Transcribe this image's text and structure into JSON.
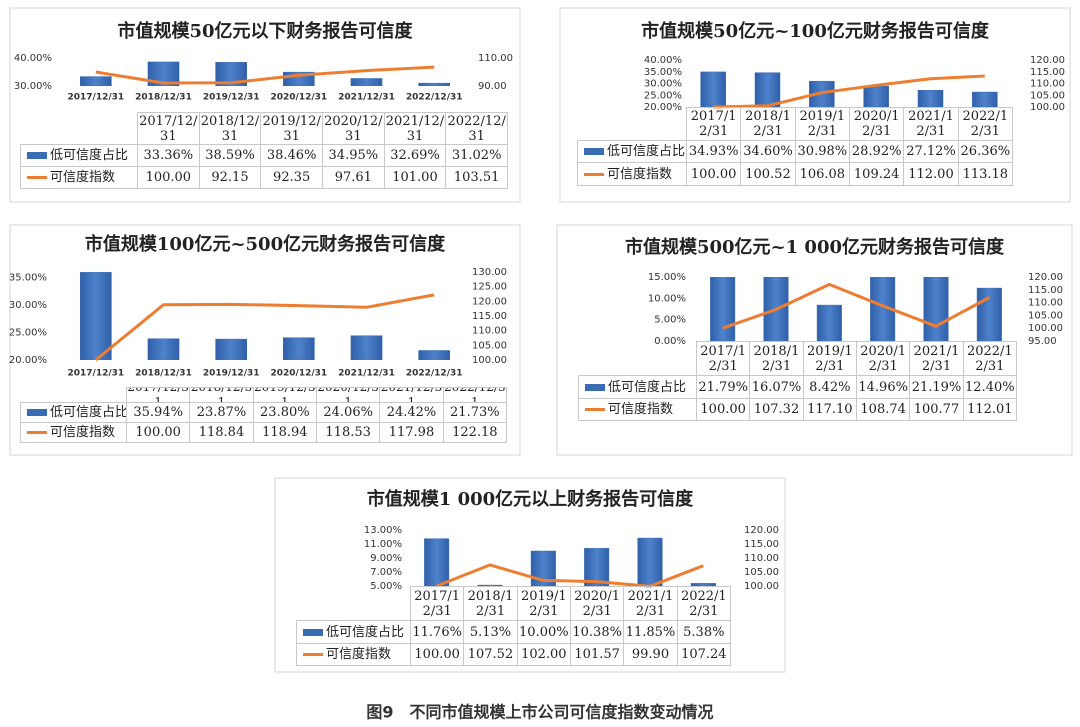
{
  "caption": "图9　不同市值规模上市公司可信度指数变动情况",
  "chart_data": [
    {
      "type": "combo",
      "title": "市值规模50亿元以下财务报告可信度",
      "categories": [
        "2017/12/31",
        "2018/12/31",
        "2019/12/31",
        "2020/12/31",
        "2021/12/31",
        "2022/12/31"
      ],
      "series": [
        {
          "name": "低可信度占比",
          "color": "#3a6cb4",
          "values": [
            33.36,
            38.59,
            38.46,
            34.95,
            32.69,
            31.02
          ],
          "value_labels": [
            "33.36%",
            "38.59%",
            "38.46%",
            "34.95%",
            "32.69%",
            "31.02%"
          ]
        },
        {
          "name": "可信度指数",
          "color": "#ed7d31",
          "axis": "y2",
          "values": [
            100,
            92.15,
            92.35,
            97.61,
            101,
            103.51
          ],
          "value_labels": [
            "100.00",
            "92.15",
            "92.35",
            "97.61",
            "101.00",
            "103.51"
          ]
        }
      ],
      "ylim": [
        30,
        40
      ],
      "yticks": [
        {
          "value": 30,
          "label": "30.00%"
        },
        {
          "value": 40,
          "label": "40.00%"
        }
      ],
      "y2lim": [
        90,
        110
      ],
      "y2ticks": [
        {
          "value": 90,
          "label": "90.00"
        },
        {
          "value": 110,
          "label": "110.00"
        }
      ]
    },
    {
      "type": "combo",
      "title": "市值规模50亿元~100亿元财务报告可信度",
      "categories": [
        "2017/12/31",
        "2018/12/31",
        "2019/12/31",
        "2020/12/31",
        "2021/12/31",
        "2022/12/31"
      ],
      "series": [
        {
          "name": "低可信度占比",
          "color": "#3a6cb4",
          "values": [
            34.93,
            34.6,
            30.98,
            28.92,
            27.12,
            26.36
          ],
          "value_labels": [
            "34.93%",
            "34.60%",
            "30.98%",
            "28.92%",
            "27.12%",
            "26.36%"
          ]
        },
        {
          "name": "可信度指数",
          "color": "#ed7d31",
          "axis": "y2",
          "values": [
            100,
            100.52,
            106.08,
            109.24,
            112,
            113.18
          ],
          "value_labels": [
            "100.00",
            "100.52",
            "106.08",
            "109.24",
            "112.00",
            "113.18"
          ]
        }
      ],
      "ylim": [
        20,
        40
      ],
      "yticks": [
        {
          "value": 20,
          "label": "20.00%"
        },
        {
          "value": 25,
          "label": "25.00%"
        },
        {
          "value": 30,
          "label": "30.00%"
        },
        {
          "value": 35,
          "label": "35.00%"
        },
        {
          "value": 40,
          "label": "40.00%"
        }
      ],
      "y2lim": [
        100,
        120
      ],
      "y2ticks": [
        {
          "value": 100,
          "label": "100.00"
        },
        {
          "value": 105,
          "label": "105.00"
        },
        {
          "value": 110,
          "label": "110.00"
        },
        {
          "value": 115,
          "label": "115.00"
        },
        {
          "value": 120,
          "label": "120.00"
        }
      ]
    },
    {
      "type": "combo",
      "title": "市值规模100亿元~500亿元财务报告可信度",
      "categories": [
        "2017/12/31",
        "2018/12/31",
        "2019/12/31",
        "2020/12/31",
        "2021/12/31",
        "2022/12/31"
      ],
      "series": [
        {
          "name": "低可信度占比",
          "color": "#3a6cb4",
          "values": [
            35.94,
            23.87,
            23.8,
            24.06,
            24.42,
            21.73
          ],
          "value_labels": [
            "35.94%",
            "23.87%",
            "23.80%",
            "24.06%",
            "24.42%",
            "21.73%"
          ]
        },
        {
          "name": "可信度指数",
          "color": "#ed7d31",
          "axis": "y2",
          "values": [
            100,
            118.84,
            118.94,
            118.53,
            117.98,
            122.18
          ],
          "value_labels": [
            "100.00",
            "118.84",
            "118.94",
            "118.53",
            "117.98",
            "122.18"
          ]
        }
      ],
      "ylim": [
        20,
        36
      ],
      "yticks": [
        {
          "value": 20,
          "label": "20.00%"
        },
        {
          "value": 25,
          "label": "25.00%"
        },
        {
          "value": 30,
          "label": "30.00%"
        },
        {
          "value": 35,
          "label": "35.00%"
        }
      ],
      "y2lim": [
        100,
        130
      ],
      "y2ticks": [
        {
          "value": 100,
          "label": "100.00"
        },
        {
          "value": 105,
          "label": "105.00"
        },
        {
          "value": 110,
          "label": "110.00"
        },
        {
          "value": 115,
          "label": "115.00"
        },
        {
          "value": 120,
          "label": "120.00"
        },
        {
          "value": 125,
          "label": "125.00"
        },
        {
          "value": 130,
          "label": "130.00"
        }
      ]
    },
    {
      "type": "combo",
      "title": "市值规模500亿元~1 000亿元财务报告可信度",
      "categories": [
        "2017/12/31",
        "2018/12/31",
        "2019/12/31",
        "2020/12/31",
        "2021/12/31",
        "2022/12/31"
      ],
      "series": [
        {
          "name": "低可信度占比",
          "color": "#3a6cb4",
          "values": [
            21.79,
            16.07,
            8.42,
            14.96,
            21.19,
            12.4
          ],
          "value_labels": [
            "21.79%",
            "16.07%",
            "8.42%",
            "14.96%",
            "21.19%",
            "12.40%"
          ]
        },
        {
          "name": "可信度指数",
          "color": "#ed7d31",
          "axis": "y2",
          "values": [
            100,
            107.32,
            117.1,
            108.74,
            100.77,
            112.01
          ],
          "value_labels": [
            "100.00",
            "107.32",
            "117.10",
            "108.74",
            "100.77",
            "112.01"
          ]
        }
      ],
      "ylim": [
        0,
        15
      ],
      "yticks": [
        {
          "value": 0,
          "label": "0.00%"
        },
        {
          "value": 5,
          "label": "5.00%"
        },
        {
          "value": 10,
          "label": "10.00%"
        },
        {
          "value": 15,
          "label": "15.00%"
        }
      ],
      "y2lim": [
        95,
        120
      ],
      "y2ticks": [
        {
          "value": 95,
          "label": "95.00"
        },
        {
          "value": 100,
          "label": "100.00"
        },
        {
          "value": 105,
          "label": "105.00"
        },
        {
          "value": 110,
          "label": "110.00"
        },
        {
          "value": 115,
          "label": "115.00"
        },
        {
          "value": 120,
          "label": "120.00"
        }
      ]
    },
    {
      "type": "combo",
      "title": "市值规模1 000亿元以上财务报告可信度",
      "categories": [
        "2017/12/31",
        "2018/12/31",
        "2019/12/31",
        "2020/12/31",
        "2021/12/31",
        "2022/12/31"
      ],
      "series": [
        {
          "name": "低可信度占比",
          "color": "#3a6cb4",
          "values": [
            11.76,
            5.13,
            10,
            10.38,
            11.85,
            5.38
          ],
          "value_labels": [
            "11.76%",
            "5.13%",
            "10.00%",
            "10.38%",
            "11.85%",
            "5.38%"
          ]
        },
        {
          "name": "可信度指数",
          "color": "#ed7d31",
          "axis": "y2",
          "values": [
            100,
            107.52,
            102,
            101.57,
            99.9,
            107.24
          ],
          "value_labels": [
            "100.00",
            "107.52",
            "102.00",
            "101.57",
            "99.90",
            "107.24"
          ]
        }
      ],
      "ylim": [
        5,
        13
      ],
      "yticks": [
        {
          "value": 5,
          "label": "5.00%"
        },
        {
          "value": 7,
          "label": "7.00%"
        },
        {
          "value": 9,
          "label": "9.00%"
        },
        {
          "value": 11,
          "label": "11.00%"
        },
        {
          "value": 13,
          "label": "13.00%"
        }
      ],
      "y2lim": [
        100,
        120
      ],
      "y2ticks": [
        {
          "value": 100,
          "label": "100.00"
        },
        {
          "value": 105,
          "label": "105.00"
        },
        {
          "value": 110,
          "label": "110.00"
        },
        {
          "value": 115,
          "label": "115.00"
        },
        {
          "value": 120,
          "label": "120.00"
        }
      ]
    }
  ]
}
